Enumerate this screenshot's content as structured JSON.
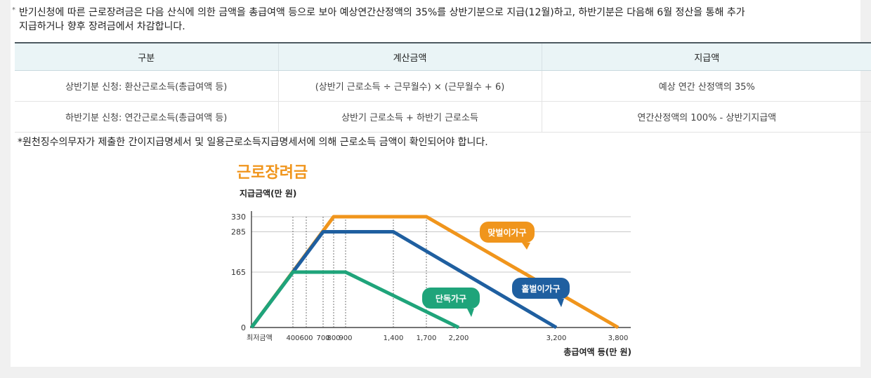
{
  "notice": {
    "bullet": "*",
    "line1": "반기신청에 따른 근로장려금은 다음 산식에 의한 금액을 총급여액 등으로 보아 예상연간산정액의 35%를 상반기분으로 지급(12월)하고, 하반기분은 다음해 6월 정산을 통해 추가",
    "line2": "지급하거나 향후 장려금에서 차감합니다."
  },
  "table": {
    "headers": [
      "구분",
      "계산금액",
      "지급액"
    ],
    "rows": [
      [
        "상반기분 신청: 환산근로소득(총급여액 등)",
        "(상반기 근로소득 ÷ 근무월수) × (근무월수 + 6)",
        "예상 연간 산정액의 35%"
      ],
      [
        "하반기분 신청: 연간근로소득(총급여액 등)",
        "상반기 근로소득 + 하반기 근로소득",
        "연간산정액의 100% - 상반기지급액"
      ]
    ]
  },
  "footnote": "*원천징수의무자가 제출한 간이지급명세서 및 일용근로소득지급명세서에 의해 근로소득 금액이 확인되어야 합니다.",
  "chart_data": {
    "type": "line",
    "title": "근로장려금",
    "ylabel": "지급금액(만 원)",
    "xlabel": "총급여액 등(만 원)",
    "y_ticks": [
      0,
      165,
      285,
      330
    ],
    "x_tick_labels": [
      "최저금액",
      "400",
      "600",
      "700",
      "800",
      "900",
      "1,400",
      "1,700",
      "2,200",
      "3,200",
      "3,800"
    ],
    "series": [
      {
        "name": "맞벌이가구",
        "color": "#f0951c",
        "points": [
          [
            0,
            0
          ],
          [
            800,
            330
          ],
          [
            1700,
            330
          ],
          [
            3800,
            0
          ]
        ]
      },
      {
        "name": "홑벌이가구",
        "color": "#1f5fa0",
        "points": [
          [
            0,
            0
          ],
          [
            700,
            285
          ],
          [
            1400,
            285
          ],
          [
            3200,
            0
          ]
        ]
      },
      {
        "name": "단독가구",
        "color": "#1fa47a",
        "points": [
          [
            0,
            0
          ],
          [
            400,
            165
          ],
          [
            900,
            165
          ],
          [
            2200,
            0
          ]
        ]
      }
    ],
    "title_color": "#f0951c"
  }
}
